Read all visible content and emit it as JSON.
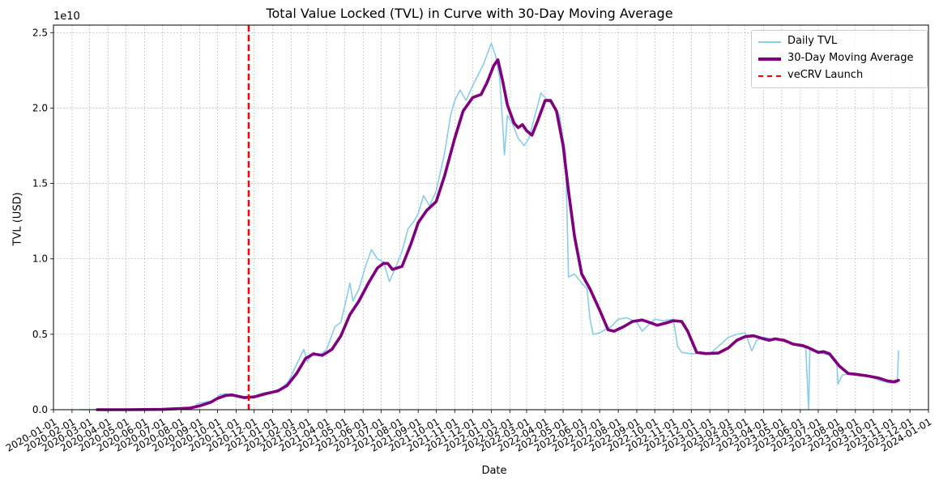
{
  "chart_data": {
    "type": "line",
    "title": "Total Value Locked (TVL) in Curve with 30-Day Moving Average",
    "xlabel": "Date",
    "ylabel": "TVL (USD)",
    "y_scale_label": "1e10",
    "xlim": [
      "2020-01-01",
      "2024-01-01"
    ],
    "ylim": [
      0,
      25500000000.0
    ],
    "y_ticks": [
      {
        "value": 0,
        "label": "0.0"
      },
      {
        "value": 5000000000.0,
        "label": "0.5"
      },
      {
        "value": 10000000000.0,
        "label": "1.0"
      },
      {
        "value": 15000000000.0,
        "label": "1.5"
      },
      {
        "value": 20000000000.0,
        "label": "2.0"
      },
      {
        "value": 25000000000.0,
        "label": "2.5"
      }
    ],
    "x_ticks": [
      "2020-01-01",
      "2020-02-01",
      "2020-03-01",
      "2020-04-01",
      "2020-05-01",
      "2020-06-01",
      "2020-07-01",
      "2020-08-01",
      "2020-09-01",
      "2020-10-01",
      "2020-11-01",
      "2020-12-01",
      "2021-01-01",
      "2021-02-01",
      "2021-03-01",
      "2021-04-01",
      "2021-05-01",
      "2021-06-01",
      "2021-07-01",
      "2021-08-01",
      "2021-09-01",
      "2021-10-01",
      "2021-11-01",
      "2021-12-01",
      "2022-01-01",
      "2022-02-01",
      "2022-03-01",
      "2022-04-01",
      "2022-05-01",
      "2022-06-01",
      "2022-07-01",
      "2022-08-01",
      "2022-09-01",
      "2022-10-01",
      "2022-11-01",
      "2022-12-01",
      "2023-01-01",
      "2023-02-01",
      "2023-03-01",
      "2023-04-01",
      "2023-05-01",
      "2023-06-01",
      "2023-07-01",
      "2023-08-01",
      "2023-09-01",
      "2023-10-01",
      "2023-11-01",
      "2023-12-01",
      "2024-01-01"
    ],
    "grid": true,
    "legend_position": "top-right",
    "series": [
      {
        "name": "Daily TVL",
        "color": "#87CEEB",
        "points": [
          [
            "2020-02-14",
            0
          ],
          [
            "2020-03-01",
            0
          ],
          [
            "2020-03-12",
            0
          ],
          [
            "2020-03-14",
            50000000.0
          ],
          [
            "2020-04-15",
            10000000.0
          ],
          [
            "2020-06-01",
            20000000.0
          ],
          [
            "2020-08-01",
            50000000.0
          ],
          [
            "2020-08-25",
            200000000.0
          ],
          [
            "2020-08-28",
            400000000.0
          ],
          [
            "2020-09-10",
            500000000.0
          ],
          [
            "2020-09-25",
            600000000.0
          ],
          [
            "2020-10-05",
            1000000000.0
          ],
          [
            "2020-10-15",
            1050000000.0
          ],
          [
            "2020-10-22",
            900000000.0
          ],
          [
            "2020-11-01",
            900000000.0
          ],
          [
            "2020-11-15",
            800000000.0
          ],
          [
            "2020-12-01",
            900000000.0
          ],
          [
            "2020-12-15",
            1100000000.0
          ],
          [
            "2021-01-01",
            1200000000.0
          ],
          [
            "2021-01-15",
            1400000000.0
          ],
          [
            "2021-01-28",
            1900000000.0
          ],
          [
            "2021-02-10",
            3000000000.0
          ],
          [
            "2021-02-22",
            4000000000.0
          ],
          [
            "2021-02-28",
            3200000000.0
          ],
          [
            "2021-03-10",
            3800000000.0
          ],
          [
            "2021-03-20",
            3600000000.0
          ],
          [
            "2021-04-01",
            4000000000.0
          ],
          [
            "2021-04-15",
            5500000000.0
          ],
          [
            "2021-04-25",
            5800000000.0
          ],
          [
            "2021-05-05",
            7500000000.0
          ],
          [
            "2021-05-10",
            8400000000.0
          ],
          [
            "2021-05-15",
            7200000000.0
          ],
          [
            "2021-05-25",
            8000000000.0
          ],
          [
            "2021-06-05",
            9500000000.0
          ],
          [
            "2021-06-15",
            10600000000.0
          ],
          [
            "2021-06-25",
            10000000000.0
          ],
          [
            "2021-07-05",
            9800000000.0
          ],
          [
            "2021-07-15",
            8500000000.0
          ],
          [
            "2021-07-25",
            9400000000.0
          ],
          [
            "2021-08-05",
            10500000000.0
          ],
          [
            "2021-08-15",
            12000000000.0
          ],
          [
            "2021-08-25",
            12500000000.0
          ],
          [
            "2021-09-01",
            13000000000.0
          ],
          [
            "2021-09-10",
            14200000000.0
          ],
          [
            "2021-09-20",
            13500000000.0
          ],
          [
            "2021-10-01",
            14500000000.0
          ],
          [
            "2021-10-15",
            17000000000.0
          ],
          [
            "2021-10-25",
            19500000000.0
          ],
          [
            "2021-11-01",
            20500000000.0
          ],
          [
            "2021-11-10",
            21200000000.0
          ],
          [
            "2021-11-20",
            20500000000.0
          ],
          [
            "2021-12-01",
            21500000000.0
          ],
          [
            "2021-12-10",
            22200000000.0
          ],
          [
            "2021-12-20",
            23000000000.0
          ],
          [
            "2022-01-01",
            24300000000.0
          ],
          [
            "2022-01-08",
            23500000000.0
          ],
          [
            "2022-01-15",
            22000000000.0
          ],
          [
            "2022-01-20",
            19000000000.0
          ],
          [
            "2022-01-23",
            16900000000.0
          ],
          [
            "2022-01-28",
            19500000000.0
          ],
          [
            "2022-02-05",
            19000000000.0
          ],
          [
            "2022-02-15",
            18000000000.0
          ],
          [
            "2022-02-25",
            17500000000.0
          ],
          [
            "2022-03-05",
            18000000000.0
          ],
          [
            "2022-03-15",
            19500000000.0
          ],
          [
            "2022-03-25",
            21000000000.0
          ],
          [
            "2022-04-05",
            20500000000.0
          ],
          [
            "2022-04-15",
            20200000000.0
          ],
          [
            "2022-04-25",
            19500000000.0
          ],
          [
            "2022-05-05",
            17000000000.0
          ],
          [
            "2022-05-08",
            12000000000.0
          ],
          [
            "2022-05-10",
            8800000000.0
          ],
          [
            "2022-05-20",
            9000000000.0
          ],
          [
            "2022-05-30",
            8500000000.0
          ],
          [
            "2022-06-10",
            8000000000.0
          ],
          [
            "2022-06-15",
            6000000000.0
          ],
          [
            "2022-06-20",
            5000000000.0
          ],
          [
            "2022-07-01",
            5100000000.0
          ],
          [
            "2022-07-10",
            5300000000.0
          ],
          [
            "2022-07-20",
            5500000000.0
          ],
          [
            "2022-08-01",
            6000000000.0
          ],
          [
            "2022-08-15",
            6100000000.0
          ],
          [
            "2022-09-01",
            5800000000.0
          ],
          [
            "2022-09-10",
            5200000000.0
          ],
          [
            "2022-09-20",
            5600000000.0
          ],
          [
            "2022-10-01",
            6000000000.0
          ],
          [
            "2022-10-15",
            5900000000.0
          ],
          [
            "2022-11-01",
            6000000000.0
          ],
          [
            "2022-11-08",
            4200000000.0
          ],
          [
            "2022-11-15",
            3800000000.0
          ],
          [
            "2022-12-01",
            3700000000.0
          ],
          [
            "2022-12-15",
            3750000000.0
          ],
          [
            "2023-01-01",
            3700000000.0
          ],
          [
            "2023-01-15",
            4200000000.0
          ],
          [
            "2023-02-01",
            4800000000.0
          ],
          [
            "2023-02-15",
            5000000000.0
          ],
          [
            "2023-03-01",
            5100000000.0
          ],
          [
            "2023-03-12",
            3900000000.0
          ],
          [
            "2023-03-20",
            4600000000.0
          ],
          [
            "2023-04-01",
            4800000000.0
          ],
          [
            "2023-04-15",
            4700000000.0
          ],
          [
            "2023-05-01",
            4600000000.0
          ],
          [
            "2023-05-15",
            4400000000.0
          ],
          [
            "2023-06-01",
            4200000000.0
          ],
          [
            "2023-06-10",
            4100000000.0
          ],
          [
            "2023-06-15",
            0
          ],
          [
            "2023-06-17",
            4000000000.0
          ],
          [
            "2023-07-01",
            3800000000.0
          ],
          [
            "2023-07-20",
            3600000000.0
          ],
          [
            "2023-08-01",
            3000000000.0
          ],
          [
            "2023-08-03",
            1700000000.0
          ],
          [
            "2023-08-10",
            2300000000.0
          ],
          [
            "2023-08-25",
            2400000000.0
          ],
          [
            "2023-09-15",
            2300000000.0
          ],
          [
            "2023-10-01",
            2100000000.0
          ],
          [
            "2023-10-15",
            1900000000.0
          ],
          [
            "2023-11-01",
            1750000000.0
          ],
          [
            "2023-11-10",
            1800000000.0
          ],
          [
            "2023-11-12",
            3900000000.0
          ]
        ]
      },
      {
        "name": "30-Day Moving Average",
        "color": "#800080",
        "points": [
          [
            "2020-03-14",
            0
          ],
          [
            "2020-05-01",
            0
          ],
          [
            "2020-07-01",
            20000000.0
          ],
          [
            "2020-08-15",
            100000000.0
          ],
          [
            "2020-09-01",
            250000000.0
          ],
          [
            "2020-09-20",
            500000000.0
          ],
          [
            "2020-10-01",
            750000000.0
          ],
          [
            "2020-10-15",
            950000000.0
          ],
          [
            "2020-10-25",
            980000000.0
          ],
          [
            "2020-11-15",
            800000000.0
          ],
          [
            "2020-12-01",
            850000000.0
          ],
          [
            "2020-12-20",
            1050000000.0
          ],
          [
            "2021-01-10",
            1250000000.0
          ],
          [
            "2021-01-25",
            1600000000.0
          ],
          [
            "2021-02-10",
            2400000000.0
          ],
          [
            "2021-02-25",
            3400000000.0
          ],
          [
            "2021-03-10",
            3700000000.0
          ],
          [
            "2021-03-25",
            3600000000.0
          ],
          [
            "2021-04-10",
            4000000000.0
          ],
          [
            "2021-04-25",
            4900000000.0
          ],
          [
            "2021-05-10",
            6300000000.0
          ],
          [
            "2021-05-25",
            7200000000.0
          ],
          [
            "2021-06-10",
            8400000000.0
          ],
          [
            "2021-06-25",
            9400000000.0
          ],
          [
            "2021-07-05",
            9700000000.0
          ],
          [
            "2021-07-12",
            9700000000.0
          ],
          [
            "2021-07-20",
            9300000000.0
          ],
          [
            "2021-08-05",
            9500000000.0
          ],
          [
            "2021-08-20",
            11000000000.0
          ],
          [
            "2021-09-01",
            12400000000.0
          ],
          [
            "2021-09-15",
            13200000000.0
          ],
          [
            "2021-10-01",
            13800000000.0
          ],
          [
            "2021-10-15",
            15500000000.0
          ],
          [
            "2021-11-01",
            18000000000.0
          ],
          [
            "2021-11-15",
            19800000000.0
          ],
          [
            "2021-12-01",
            20700000000.0
          ],
          [
            "2021-12-15",
            20900000000.0
          ],
          [
            "2021-12-25",
            21700000000.0
          ],
          [
            "2022-01-05",
            22800000000.0
          ],
          [
            "2022-01-12",
            23200000000.0
          ],
          [
            "2022-01-20",
            21800000000.0
          ],
          [
            "2022-01-28",
            20200000000.0
          ],
          [
            "2022-02-08",
            19000000000.0
          ],
          [
            "2022-02-15",
            18700000000.0
          ],
          [
            "2022-02-22",
            18900000000.0
          ],
          [
            "2022-03-01",
            18500000000.0
          ],
          [
            "2022-03-10",
            18200000000.0
          ],
          [
            "2022-03-20",
            19200000000.0
          ],
          [
            "2022-04-01",
            20500000000.0
          ],
          [
            "2022-04-10",
            20500000000.0
          ],
          [
            "2022-04-20",
            19800000000.0
          ],
          [
            "2022-05-01",
            17500000000.0
          ],
          [
            "2022-05-10",
            14500000000.0
          ],
          [
            "2022-05-20",
            11500000000.0
          ],
          [
            "2022-06-01",
            9000000000.0
          ],
          [
            "2022-06-15",
            8000000000.0
          ],
          [
            "2022-07-01",
            6600000000.0
          ],
          [
            "2022-07-15",
            5300000000.0
          ],
          [
            "2022-07-25",
            5200000000.0
          ],
          [
            "2022-08-10",
            5500000000.0
          ],
          [
            "2022-08-25",
            5850000000.0
          ],
          [
            "2022-09-10",
            5950000000.0
          ],
          [
            "2022-09-25",
            5750000000.0
          ],
          [
            "2022-10-05",
            5600000000.0
          ],
          [
            "2022-10-20",
            5750000000.0
          ],
          [
            "2022-11-01",
            5900000000.0
          ],
          [
            "2022-11-15",
            5850000000.0
          ],
          [
            "2022-11-25",
            5200000000.0
          ],
          [
            "2022-12-10",
            3800000000.0
          ],
          [
            "2022-12-25",
            3720000000.0
          ],
          [
            "2023-01-15",
            3750000000.0
          ],
          [
            "2023-02-01",
            4100000000.0
          ],
          [
            "2023-02-15",
            4600000000.0
          ],
          [
            "2023-03-01",
            4850000000.0
          ],
          [
            "2023-03-15",
            4900000000.0
          ],
          [
            "2023-04-01",
            4700000000.0
          ],
          [
            "2023-04-10",
            4600000000.0
          ],
          [
            "2023-04-20",
            4700000000.0
          ],
          [
            "2023-05-05",
            4600000000.0
          ],
          [
            "2023-05-20",
            4350000000.0
          ],
          [
            "2023-06-05",
            4250000000.0
          ],
          [
            "2023-06-15",
            4100000000.0
          ],
          [
            "2023-07-01",
            3800000000.0
          ],
          [
            "2023-07-10",
            3850000000.0
          ],
          [
            "2023-07-20",
            3700000000.0
          ],
          [
            "2023-08-05",
            2900000000.0
          ],
          [
            "2023-08-20",
            2400000000.0
          ],
          [
            "2023-09-01",
            2350000000.0
          ],
          [
            "2023-09-20",
            2250000000.0
          ],
          [
            "2023-10-10",
            2100000000.0
          ],
          [
            "2023-10-25",
            1900000000.0
          ],
          [
            "2023-11-05",
            1850000000.0
          ],
          [
            "2023-11-12",
            1950000000.0
          ]
        ]
      }
    ],
    "annotations": [
      {
        "name": "veCRV Launch",
        "type": "vline",
        "x": "2020-11-22",
        "color": "#ff0000",
        "style": "dashed"
      }
    ],
    "legend": [
      {
        "label": "Daily TVL",
        "color": "#87CEEB",
        "style": "solid-thin"
      },
      {
        "label": "30-Day Moving Average",
        "color": "#800080",
        "style": "solid-thick"
      },
      {
        "label": "veCRV Launch",
        "color": "#ff0000",
        "style": "dashed"
      }
    ]
  }
}
